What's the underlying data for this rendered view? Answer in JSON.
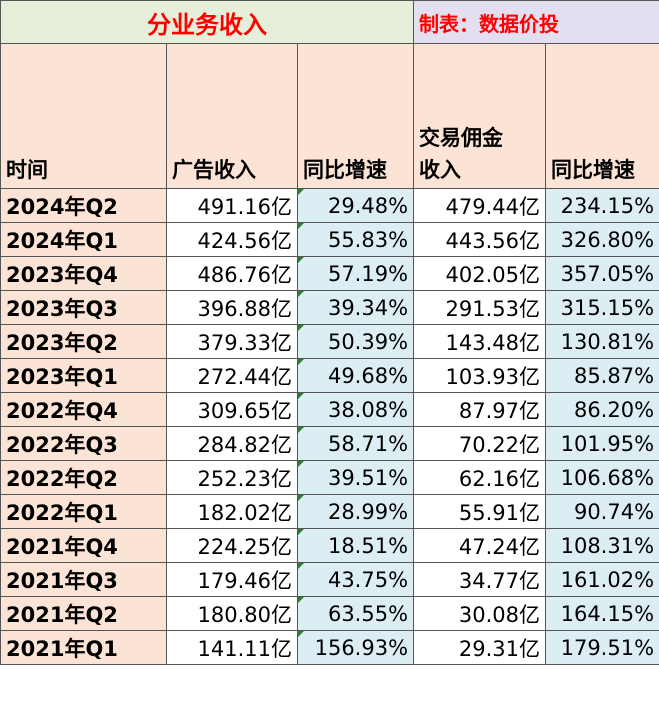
{
  "title": {
    "main": "分业务收入",
    "note": "制表：数据价投"
  },
  "headers": {
    "time": "时间",
    "ad_revenue": "广告收入",
    "ad_yoy": "同比增速",
    "commission_line1": "交易佣金",
    "commission_line2": "收入",
    "commission_yoy": "同比增速"
  },
  "rows": [
    {
      "period": "2024年Q2",
      "ad": "491.16亿",
      "ad_yoy": "29.48%",
      "com": "479.44亿",
      "com_yoy": "234.15%"
    },
    {
      "period": "2024年Q1",
      "ad": "424.56亿",
      "ad_yoy": "55.83%",
      "com": "443.56亿",
      "com_yoy": "326.80%"
    },
    {
      "period": "2023年Q4",
      "ad": "486.76亿",
      "ad_yoy": "57.19%",
      "com": "402.05亿",
      "com_yoy": "357.05%"
    },
    {
      "period": "2023年Q3",
      "ad": "396.88亿",
      "ad_yoy": "39.34%",
      "com": "291.53亿",
      "com_yoy": "315.15%"
    },
    {
      "period": "2023年Q2",
      "ad": "379.33亿",
      "ad_yoy": "50.39%",
      "com": "143.48亿",
      "com_yoy": "130.81%"
    },
    {
      "period": "2023年Q1",
      "ad": "272.44亿",
      "ad_yoy": "49.68%",
      "com": "103.93亿",
      "com_yoy": "85.87%"
    },
    {
      "period": "2022年Q4",
      "ad": "309.65亿",
      "ad_yoy": "38.08%",
      "com": "87.97亿",
      "com_yoy": "86.20%"
    },
    {
      "period": "2022年Q3",
      "ad": "284.82亿",
      "ad_yoy": "58.71%",
      "com": "70.22亿",
      "com_yoy": "101.95%"
    },
    {
      "period": "2022年Q2",
      "ad": "252.23亿",
      "ad_yoy": "39.51%",
      "com": "62.16亿",
      "com_yoy": "106.68%"
    },
    {
      "period": "2022年Q1",
      "ad": "182.02亿",
      "ad_yoy": "28.99%",
      "com": "55.91亿",
      "com_yoy": "90.74%"
    },
    {
      "period": "2021年Q4",
      "ad": "224.25亿",
      "ad_yoy": "18.51%",
      "com": "47.24亿",
      "com_yoy": "108.31%"
    },
    {
      "period": "2021年Q3",
      "ad": "179.46亿",
      "ad_yoy": "43.75%",
      "com": "34.77亿",
      "com_yoy": "161.02%"
    },
    {
      "period": "2021年Q2",
      "ad": "180.80亿",
      "ad_yoy": "63.55%",
      "com": "30.08亿",
      "com_yoy": "164.15%"
    },
    {
      "period": "2021年Q1",
      "ad": "141.11亿",
      "ad_yoy": "156.93%",
      "com": "29.31亿",
      "com_yoy": "179.51%"
    }
  ]
}
